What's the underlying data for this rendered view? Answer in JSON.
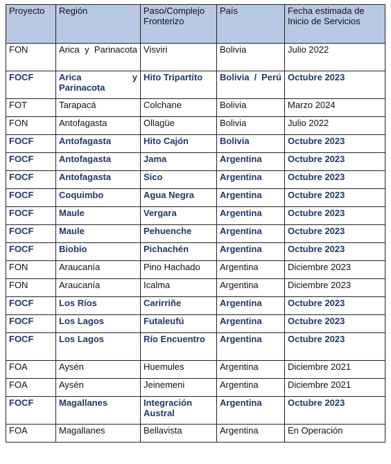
{
  "table": {
    "headers": [
      "Proyecto",
      "Región",
      "Paso/Complejo Fronterizo",
      "País",
      "Fecha estimada de Inicio de Servicios"
    ],
    "rows": [
      {
        "proyecto": "FON",
        "region": "Arica y Parinacota",
        "paso": "Visviri",
        "pais": "Bolivia",
        "fecha": "Julio 2022",
        "bold": false
      },
      {
        "proyecto": "FOCF",
        "region": "Arica y Parinacota",
        "paso": "Hito Tripartito",
        "pais": "Bolivia / Perú",
        "fecha": "Octubre 2023",
        "bold": true
      },
      {
        "proyecto": "FOT",
        "region": "Tarapacá",
        "paso": "Colchane",
        "pais": "Bolivia",
        "fecha": "Marzo 2024",
        "bold": false
      },
      {
        "proyecto": "FON",
        "region": "Antofagasta",
        "paso": "Ollagüe",
        "pais": "Bolivia",
        "fecha": "Julio 2022",
        "bold": false
      },
      {
        "proyecto": "FOCF",
        "region": "Antofagasta",
        "paso": "Hito Cajón",
        "pais": "Bolivia",
        "fecha": "Octubre 2023",
        "bold": true
      },
      {
        "proyecto": "FOCF",
        "region": "Antofagasta",
        "paso": "Jama",
        "pais": "Argentina",
        "fecha": "Octubre 2023",
        "bold": true
      },
      {
        "proyecto": "FOCF",
        "region": "Antofagasta",
        "paso": "Sico",
        "pais": "Argentina",
        "fecha": "Octubre 2023",
        "bold": true
      },
      {
        "proyecto": "FOCF",
        "region": "Coquimbo",
        "paso": "Agua Negra",
        "pais": "Argentina",
        "fecha": "Octubre 2023",
        "bold": true
      },
      {
        "proyecto": "FOCF",
        "region": "Maule",
        "paso": "Vergara",
        "pais": "Argentina",
        "fecha": "Octubre 2023",
        "bold": true
      },
      {
        "proyecto": "FOCF",
        "region": "Maule",
        "paso": "Pehuenche",
        "pais": "Argentina",
        "fecha": "Octubre 2023",
        "bold": true
      },
      {
        "proyecto": "FOCF",
        "region": "Biobío",
        "paso": "Pichachén",
        "pais": "Argentina",
        "fecha": "Octubre 2023",
        "bold": true
      },
      {
        "proyecto": "FON",
        "region": "Araucanía",
        "paso": "Pino Hachado",
        "pais": "Argentina",
        "fecha": "Diciembre 2023",
        "bold": false
      },
      {
        "proyecto": "FON",
        "region": "Araucanía",
        "paso": "Icalma",
        "pais": "Argentina",
        "fecha": "Diciembre 2023",
        "bold": false
      },
      {
        "proyecto": "FOCF",
        "region": "Los Ríos",
        "paso": "Carirriñe",
        "pais": "Argentina",
        "fecha": "Octubre 2023",
        "bold": true
      },
      {
        "proyecto": "FOCF",
        "region": "Los Lagos",
        "paso": "Futaleufú",
        "pais": "Argentina",
        "fecha": "Octubre 2023",
        "bold": true
      },
      {
        "proyecto": "FOCF",
        "region": "Los Lagos",
        "paso": "Río Encuentro",
        "pais": "Argentina",
        "fecha": "Octubre 2023",
        "bold": true
      },
      {
        "proyecto": "FOA",
        "region": "Aysén",
        "paso": "Huemules",
        "pais": "Argentina",
        "fecha": "Diciembre 2021",
        "bold": false
      },
      {
        "proyecto": "FOA",
        "region": "Aysén",
        "paso": "Jeinemeni",
        "pais": "Argentina",
        "fecha": "Diciembre 2021",
        "bold": false
      },
      {
        "proyecto": "FOCF",
        "region": "Magallanes",
        "paso": "Integración Austral",
        "pais": "Argentina",
        "fecha": "Octubre 2023",
        "bold": true
      },
      {
        "proyecto": "FOA",
        "region": "Magallanes",
        "paso": "Bellavista",
        "pais": "Argentina",
        "fecha": "En Operación",
        "bold": false
      }
    ]
  },
  "colors": {
    "header_bg": "#b8c9e3",
    "bold_text": "#1f3864",
    "grid": "#222222"
  }
}
